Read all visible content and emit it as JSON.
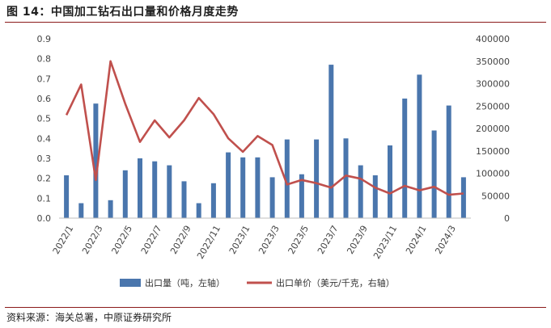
{
  "header": {
    "title": "图 14：中国加工钻石出口量和价格月度走势"
  },
  "footer": {
    "source": "资料来源：海关总署，中原证券研究所"
  },
  "chart_data": {
    "type": "bar+line",
    "title": "图 14：中国加工钻石出口量和价格月度走势",
    "categories": [
      "2022/1",
      "2022/2",
      "2022/3",
      "2022/4",
      "2022/5",
      "2022/6",
      "2022/7",
      "2022/8",
      "2022/9",
      "2022/10",
      "2022/11",
      "2022/12",
      "2023/1",
      "2023/2",
      "2023/3",
      "2023/4",
      "2023/5",
      "2023/6",
      "2023/7",
      "2023/8",
      "2023/9",
      "2023/10",
      "2023/11",
      "2023/12",
      "2024/1",
      "2024/2",
      "2024/3",
      "2024/4"
    ],
    "x_tick_labels": [
      "2022/1",
      "2022/3",
      "2022/5",
      "2022/7",
      "2022/9",
      "2022/11",
      "2023/1",
      "2023/3",
      "2023/5",
      "2023/7",
      "2023/9",
      "2023/11",
      "2024/1",
      "2024/3"
    ],
    "series": [
      {
        "name": "出口量（吨，左轴）",
        "type": "bar",
        "axis": "left",
        "color": "#4a76ad",
        "values": [
          0.215,
          0.075,
          0.575,
          0.09,
          0.24,
          0.3,
          0.285,
          0.265,
          0.185,
          0.075,
          0.175,
          0.33,
          0.305,
          0.305,
          0.205,
          0.395,
          0.22,
          0.395,
          0.77,
          0.4,
          0.265,
          0.215,
          0.365,
          0.6,
          0.72,
          0.44,
          0.565,
          0.205
        ]
      },
      {
        "name": "出口单价（美元/千克，右轴）",
        "type": "line",
        "axis": "right",
        "color": "#c0504d",
        "values": [
          230000,
          298000,
          85000,
          350000,
          255000,
          170000,
          218000,
          180000,
          218000,
          268000,
          232000,
          178000,
          148000,
          183000,
          163000,
          75000,
          85000,
          78000,
          68000,
          95000,
          88000,
          68000,
          55000,
          72000,
          62000,
          70000,
          52000,
          55000
        ]
      }
    ],
    "y_left": {
      "min": 0,
      "max": 0.9,
      "step": 0.1,
      "tick_labels": [
        "0.0",
        "0.1",
        "0.2",
        "0.3",
        "0.4",
        "0.5",
        "0.6",
        "0.7",
        "0.8",
        "0.9"
      ]
    },
    "y_right": {
      "min": 0,
      "max": 400000,
      "step": 50000,
      "tick_labels": [
        "0",
        "50000",
        "100000",
        "150000",
        "200000",
        "250000",
        "300000",
        "350000",
        "400000"
      ]
    },
    "legend_position": "bottom",
    "grid": false
  }
}
